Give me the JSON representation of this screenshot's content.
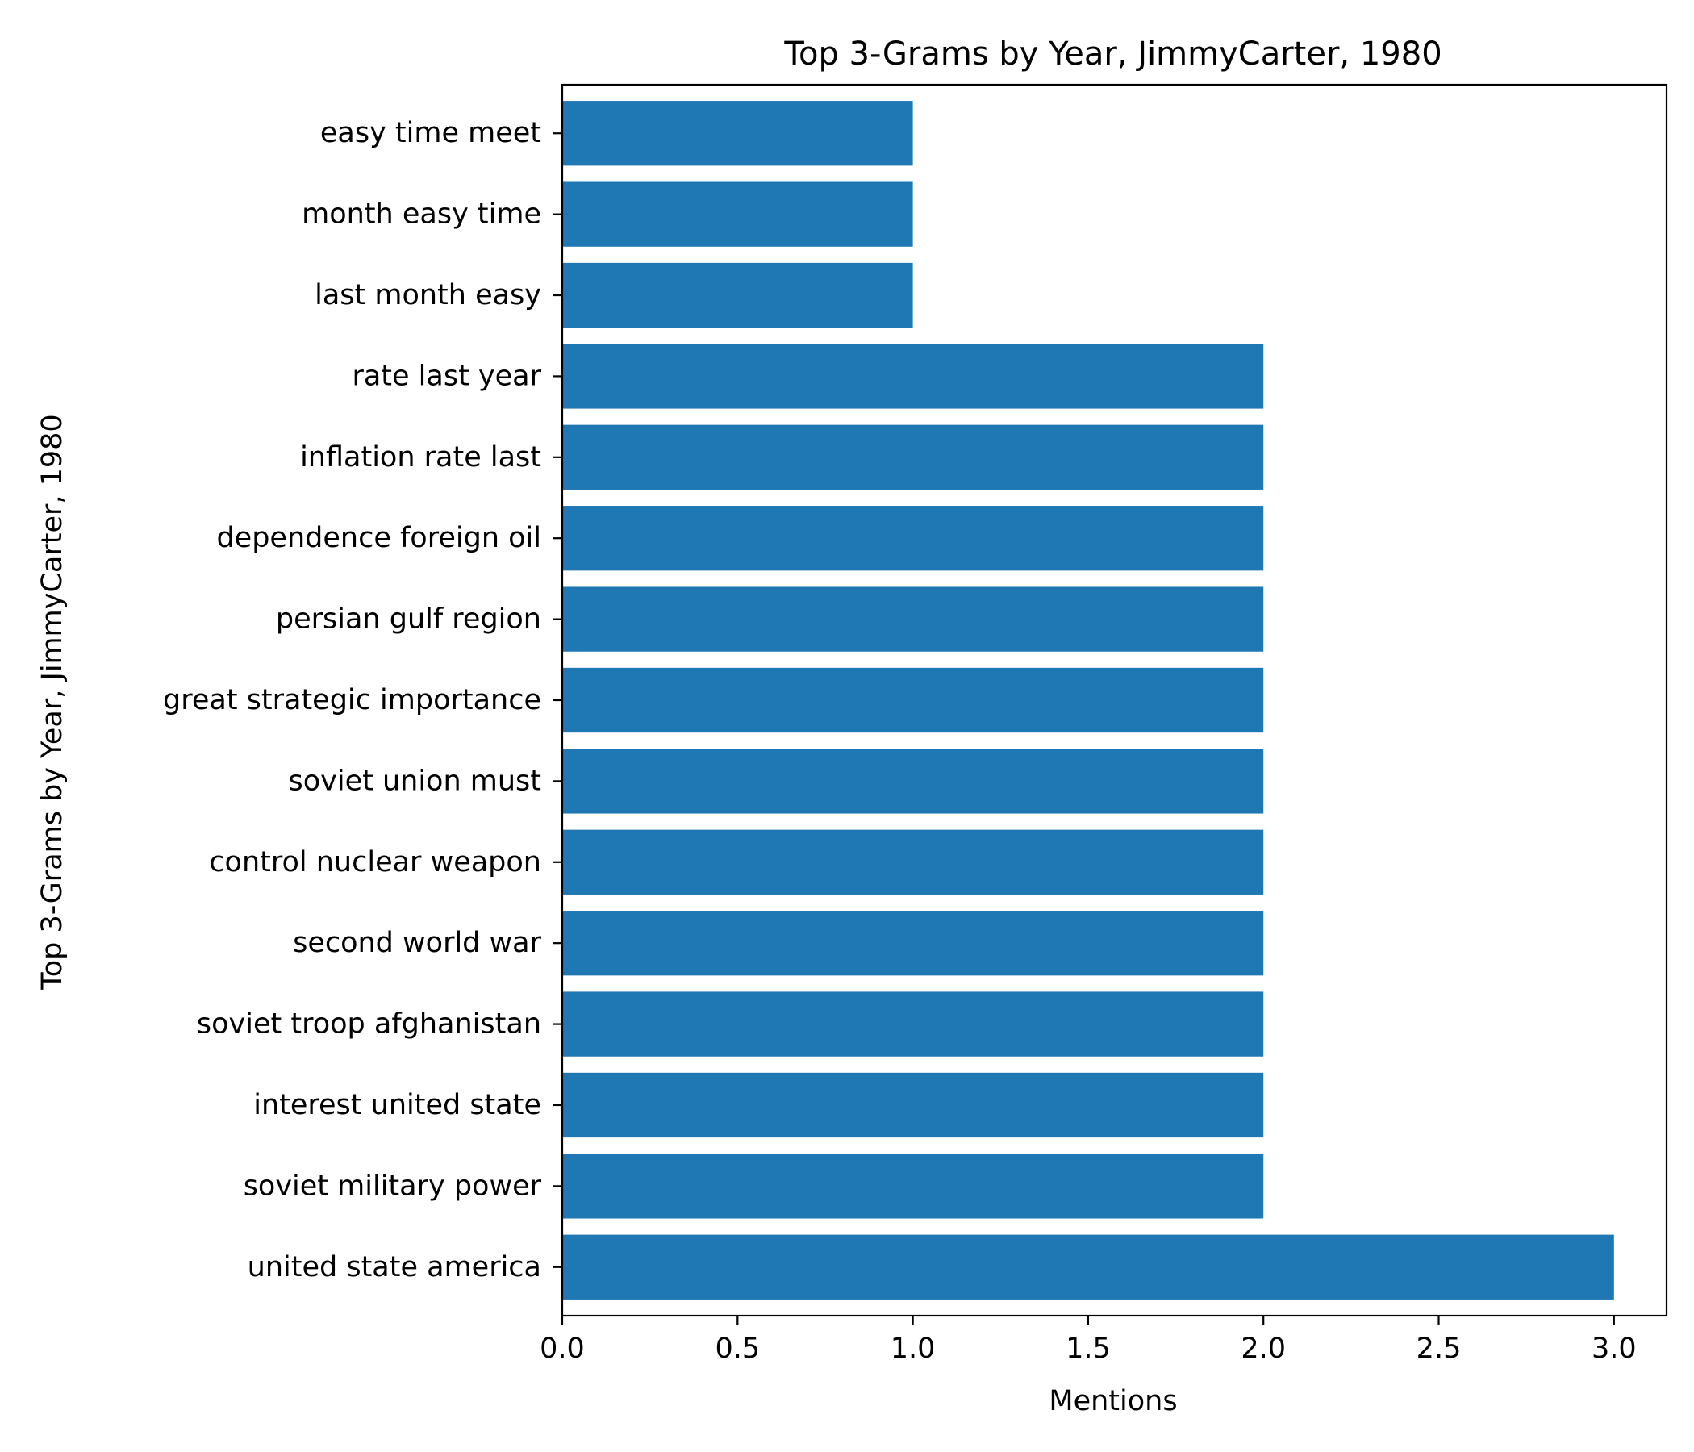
{
  "chart_data": {
    "type": "bar",
    "orientation": "horizontal",
    "title": "Top 3-Grams by Year, JimmyCarter, 1980",
    "xlabel": "Mentions",
    "ylabel": "Top 3-Grams by Year, JimmyCarter, 1980",
    "xlim": [
      0,
      3.15
    ],
    "xticks": [
      "0.0",
      "0.5",
      "1.0",
      "1.5",
      "2.0",
      "2.5",
      "3.0"
    ],
    "grid": false,
    "bar_color": "#1f77b4",
    "categories": [
      "united state america",
      "soviet military power",
      "interest united state",
      "soviet troop afghanistan",
      "second world war",
      "control nuclear weapon",
      "soviet union must",
      "great strategic importance",
      "persian gulf region",
      "dependence foreign oil",
      "inflation rate last",
      "rate last year",
      "last month easy",
      "month easy time",
      "easy time meet"
    ],
    "values": [
      3,
      2,
      2,
      2,
      2,
      2,
      2,
      2,
      2,
      2,
      2,
      2,
      1,
      1,
      1
    ]
  }
}
